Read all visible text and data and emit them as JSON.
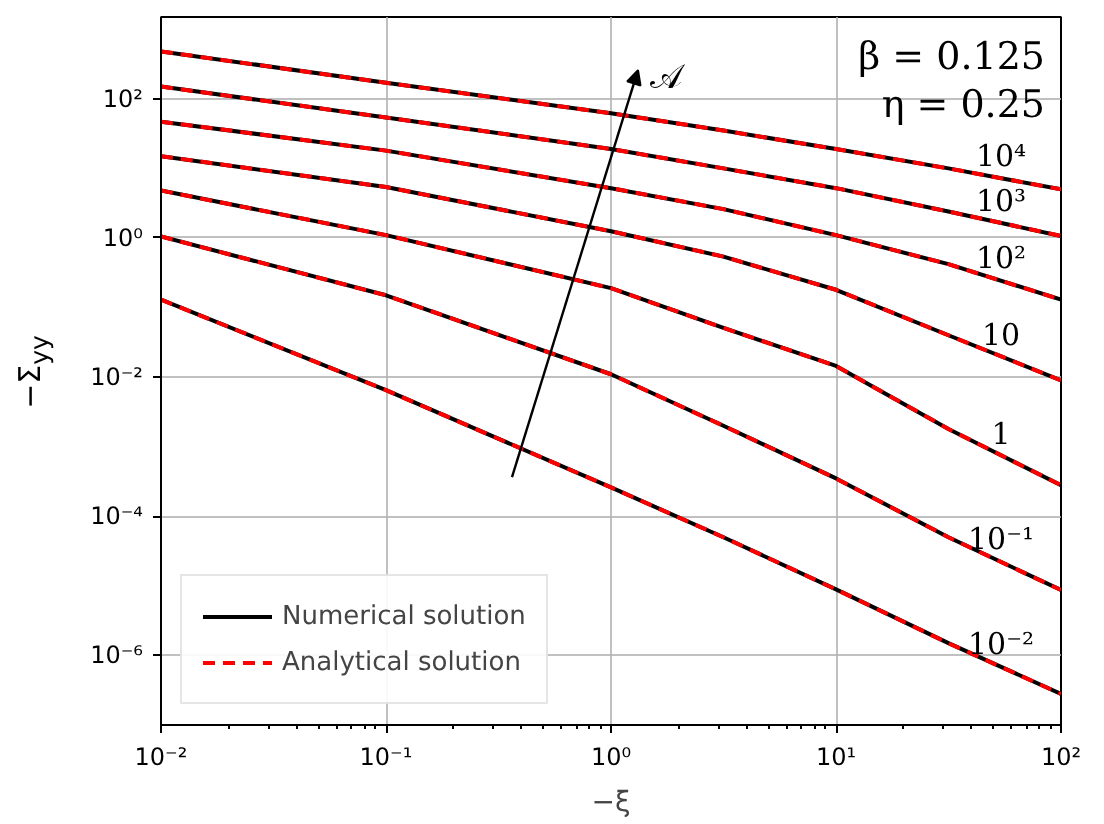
{
  "chart_data": {
    "type": "line",
    "log": "xy",
    "grid": true,
    "legend": "bottom left",
    "xlabel": "−ξ",
    "ylabel": "−Σ$_{yy}$",
    "x": [
      0.01,
      0.1,
      1,
      3.16,
      10,
      31.6,
      100
    ],
    "xlim": [
      0.01,
      100
    ],
    "ylim": [
      1e-07,
      1500
    ],
    "xticks": [
      {
        "value": 0.01,
        "label": "10⁻²"
      },
      {
        "value": 0.1,
        "label": "10⁻¹"
      },
      {
        "value": 1,
        "label": "10⁰"
      },
      {
        "value": 10,
        "label": "10¹"
      },
      {
        "value": 100,
        "label": "10²"
      }
    ],
    "yticks": [
      {
        "value": 1e-06,
        "label": "10⁻⁶"
      },
      {
        "value": 0.0001,
        "label": "10⁻⁴"
      },
      {
        "value": 0.01,
        "label": "10⁻²"
      },
      {
        "value": 1,
        "label": "10⁰"
      },
      {
        "value": 100,
        "label": "10²"
      }
    ],
    "series": [
      {
        "name": "Numerical solution",
        "color": "#000000",
        "line_style": "solid",
        "values": [
          480,
          170,
          62,
          35,
          19,
          10,
          5.0
        ]
      },
      {
        "color": "#000000",
        "line_style": "solid",
        "values": [
          150,
          54,
          19,
          10,
          5.2,
          2.4,
          1.07
        ]
      },
      {
        "color": "#000000",
        "line_style": "solid",
        "values": [
          47,
          18,
          5.2,
          2.6,
          1.1,
          0.42,
          0.13
        ]
      },
      {
        "color": "#000000",
        "line_style": "solid",
        "values": [
          15,
          5.4,
          1.25,
          0.54,
          0.18,
          0.04,
          0.009
        ]
      },
      {
        "color": "#000000",
        "line_style": "solid",
        "values": [
          4.8,
          1.1,
          0.19,
          0.051,
          0.0145,
          0.0018,
          0.00028
        ]
      },
      {
        "color": "#000000",
        "line_style": "solid",
        "values": [
          1.05,
          0.15,
          0.011,
          0.002,
          0.00035,
          5e-05,
          8.7e-06
        ]
      },
      {
        "color": "#000000",
        "line_style": "solid",
        "values": [
          0.13,
          0.0065,
          0.00026,
          5e-05,
          8.9e-06,
          1.5e-06,
          2.8e-07
        ]
      },
      {
        "name": "Analytical solution",
        "color": "#ff0000",
        "line_style": "dashed",
        "values": [
          480,
          170,
          62,
          35,
          19,
          10,
          5.0
        ]
      },
      {
        "color": "#ff0000",
        "line_style": "dashed",
        "values": [
          150,
          54,
          19,
          10,
          5.2,
          2.4,
          1.07
        ]
      },
      {
        "color": "#ff0000",
        "line_style": "dashed",
        "values": [
          47,
          18,
          5.2,
          2.6,
          1.1,
          0.42,
          0.13
        ]
      },
      {
        "color": "#ff0000",
        "line_style": "dashed",
        "values": [
          15,
          5.4,
          1.25,
          0.54,
          0.18,
          0.04,
          0.009
        ]
      },
      {
        "color": "#ff0000",
        "line_style": "dashed",
        "values": [
          4.8,
          1.1,
          0.19,
          0.051,
          0.0145,
          0.0018,
          0.00028
        ]
      },
      {
        "color": "#ff0000",
        "line_style": "dashed",
        "values": [
          1.05,
          0.15,
          0.011,
          0.002,
          0.00035,
          5e-05,
          8.7e-06
        ]
      },
      {
        "color": "#ff0000",
        "line_style": "dashed",
        "values": [
          0.13,
          0.0065,
          0.00026,
          5e-05,
          8.9e-06,
          1.5e-06,
          2.8e-07
        ]
      }
    ],
    "annotations": [
      "10⁴",
      "10³",
      "10²",
      "10",
      "1",
      "10⁻¹",
      "10⁻²",
      "𝒜",
      "β = 0.125",
      "η = 0.25"
    ]
  }
}
